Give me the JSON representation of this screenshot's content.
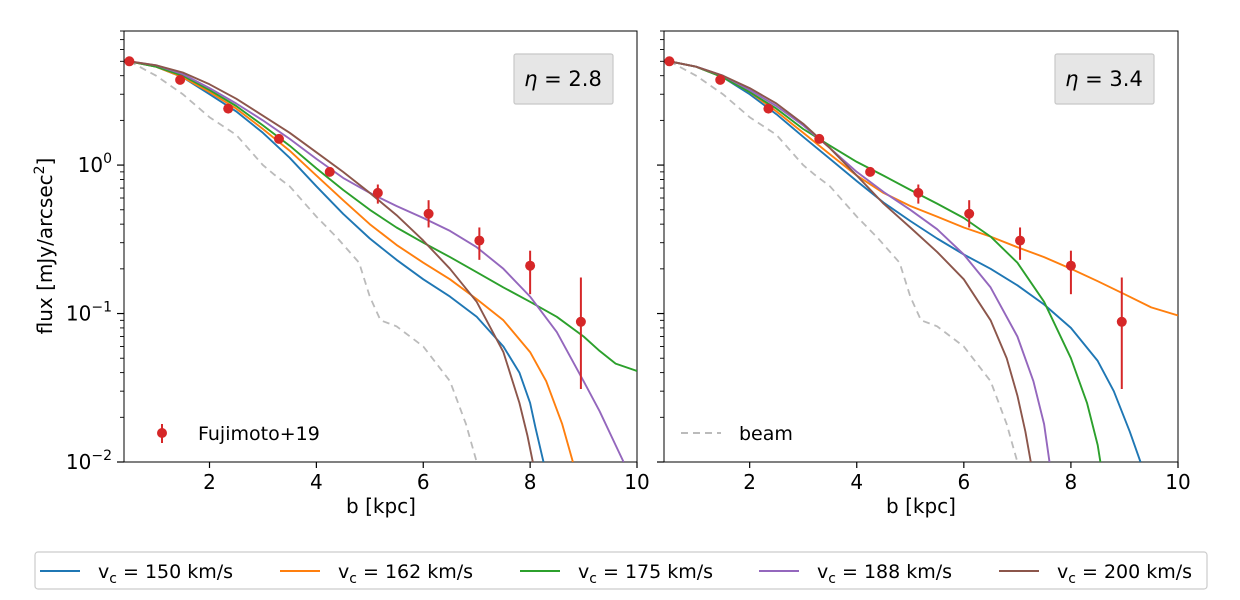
{
  "chart_data": {
    "type": "line",
    "ylabel": "flux [mJy/arcsec²]",
    "xlabel": "b [kpc]",
    "xlim": [
      0.4,
      10
    ],
    "ylim": [
      0.01,
      8
    ],
    "yscale": "log",
    "x_ticks": [
      "2",
      "4",
      "6",
      "8",
      "10"
    ],
    "y_ticks": [
      {
        "base": "10",
        "exp": "0"
      },
      {
        "base": "10",
        "exp": "−1"
      },
      {
        "base": "10",
        "exp": "−2"
      }
    ],
    "series_colors": {
      "vc150": "#1f77b4",
      "vc162": "#ff7f0e",
      "vc175": "#2ca02c",
      "vc188": "#9467bd",
      "vc200": "#8c564b",
      "beam": "#bbbbbb",
      "data": "#d62728"
    },
    "legend_bottom": [
      {
        "key": "vc150",
        "prefix": "v",
        "sub": "c",
        "suffix": " = 150 km/s"
      },
      {
        "key": "vc162",
        "prefix": "v",
        "sub": "c",
        "suffix": " = 162 km/s"
      },
      {
        "key": "vc175",
        "prefix": "v",
        "sub": "c",
        "suffix": " = 175 km/s"
      },
      {
        "key": "vc188",
        "prefix": "v",
        "sub": "c",
        "suffix": " = 188 km/s"
      },
      {
        "key": "vc200",
        "prefix": "v",
        "sub": "c",
        "suffix": " = 200 km/s"
      }
    ],
    "panels": [
      {
        "eta_symbol": "η",
        "eta_value": " = 2.8",
        "inner_legend": {
          "label": "Fujimoto+19",
          "kind": "errorbar"
        },
        "data_points": [
          {
            "x": 0.5,
            "y": 5.0,
            "err_lo": 0,
            "err_hi": 0
          },
          {
            "x": 1.45,
            "y": 3.75,
            "err_lo": 0,
            "err_hi": 0
          },
          {
            "x": 2.35,
            "y": 2.4,
            "err_lo": 0,
            "err_hi": 0
          },
          {
            "x": 3.3,
            "y": 1.5,
            "err_lo": 0,
            "err_hi": 0
          },
          {
            "x": 4.25,
            "y": 0.9,
            "err_lo": 0,
            "err_hi": 0
          },
          {
            "x": 5.15,
            "y": 0.65,
            "err_lo": 0.1,
            "err_hi": 0.09
          },
          {
            "x": 6.1,
            "y": 0.47,
            "err_lo": 0.09,
            "err_hi": 0.11
          },
          {
            "x": 7.05,
            "y": 0.31,
            "err_lo": 0.08,
            "err_hi": 0.07
          },
          {
            "x": 8.0,
            "y": 0.21,
            "err_lo": 0.075,
            "err_hi": 0.055
          },
          {
            "x": 8.95,
            "y": 0.088,
            "err_lo": 0.057,
            "err_hi": 0.087
          }
        ],
        "series": [
          {
            "key": "beam",
            "name": "beam",
            "x": [
              0.5,
              1,
              1.5,
              2,
              2.5,
              3,
              3.2,
              3.5,
              4,
              4.4,
              4.8,
              5.0,
              5.2,
              5.5,
              6,
              6.5,
              6.8,
              7.0
            ],
            "y": [
              5.0,
              4.0,
              3.0,
              2.1,
              1.6,
              1.0,
              0.87,
              0.72,
              0.45,
              0.32,
              0.22,
              0.13,
              0.09,
              0.082,
              0.06,
              0.035,
              0.018,
              0.01
            ]
          },
          {
            "key": "vc150",
            "name": "v_c = 150 km/s",
            "x": [
              0.5,
              1,
              1.5,
              2,
              2.5,
              3,
              3.5,
              4,
              4.5,
              5,
              5.5,
              6,
              6.5,
              7,
              7.5,
              7.8,
              8.0,
              8.1,
              8.25
            ],
            "y": [
              5.0,
              4.6,
              3.9,
              3.0,
              2.3,
              1.65,
              1.12,
              0.72,
              0.47,
              0.32,
              0.23,
              0.17,
              0.13,
              0.095,
              0.06,
              0.04,
              0.025,
              0.017,
              0.01
            ]
          },
          {
            "key": "vc162",
            "name": "v_c = 162 km/s",
            "x": [
              0.5,
              1,
              1.5,
              2,
              2.5,
              3,
              3.5,
              4,
              4.5,
              5,
              5.5,
              6,
              6.5,
              7,
              7.5,
              8,
              8.3,
              8.6,
              8.8
            ],
            "y": [
              5.0,
              4.6,
              3.9,
              3.1,
              2.4,
              1.75,
              1.25,
              0.85,
              0.58,
              0.4,
              0.29,
              0.22,
              0.17,
              0.125,
              0.09,
              0.055,
              0.035,
              0.018,
              0.01
            ]
          },
          {
            "key": "vc175",
            "name": "v_c = 175 km/s",
            "x": [
              0.5,
              1,
              1.5,
              2,
              2.5,
              3,
              3.5,
              4,
              4.5,
              5,
              5.5,
              6,
              6.5,
              7,
              7.5,
              8,
              8.5,
              9,
              9.3,
              9.6,
              10
            ],
            "y": [
              5.0,
              4.6,
              4.0,
              3.2,
              2.5,
              1.85,
              1.35,
              0.95,
              0.68,
              0.5,
              0.38,
              0.3,
              0.24,
              0.19,
              0.15,
              0.12,
              0.095,
              0.07,
              0.056,
              0.046,
              0.041
            ]
          },
          {
            "key": "vc188",
            "name": "v_c = 188 km/s",
            "x": [
              0.5,
              1,
              1.5,
              2,
              2.5,
              3,
              3.5,
              4,
              4.5,
              5,
              5.5,
              6,
              6.5,
              7,
              7.5,
              8,
              8.5,
              9,
              9.3,
              9.6,
              9.75
            ],
            "y": [
              5.0,
              4.7,
              4.1,
              3.3,
              2.6,
              2.0,
              1.5,
              1.1,
              0.82,
              0.65,
              0.53,
              0.44,
              0.36,
              0.28,
              0.2,
              0.13,
              0.075,
              0.035,
              0.022,
              0.013,
              0.01
            ]
          },
          {
            "key": "vc200",
            "name": "v_c = 200 km/s",
            "x": [
              0.5,
              1,
              1.5,
              2,
              2.5,
              3,
              3.5,
              4,
              4.5,
              5,
              5.5,
              6,
              6.5,
              7,
              7.5,
              7.8,
              7.95,
              8.05
            ],
            "y": [
              5.0,
              4.7,
              4.2,
              3.5,
              2.8,
              2.15,
              1.65,
              1.22,
              0.9,
              0.65,
              0.46,
              0.31,
              0.2,
              0.12,
              0.055,
              0.025,
              0.015,
              0.01
            ]
          }
        ]
      },
      {
        "eta_symbol": "η",
        "eta_value": " = 3.4",
        "inner_legend": {
          "label": "beam",
          "kind": "dashed"
        },
        "data_points": [
          {
            "x": 0.5,
            "y": 5.0,
            "err_lo": 0,
            "err_hi": 0
          },
          {
            "x": 1.45,
            "y": 3.75,
            "err_lo": 0,
            "err_hi": 0
          },
          {
            "x": 2.35,
            "y": 2.4,
            "err_lo": 0,
            "err_hi": 0
          },
          {
            "x": 3.3,
            "y": 1.5,
            "err_lo": 0,
            "err_hi": 0
          },
          {
            "x": 4.25,
            "y": 0.9,
            "err_lo": 0,
            "err_hi": 0
          },
          {
            "x": 5.15,
            "y": 0.65,
            "err_lo": 0.1,
            "err_hi": 0.09
          },
          {
            "x": 6.1,
            "y": 0.47,
            "err_lo": 0.09,
            "err_hi": 0.11
          },
          {
            "x": 7.05,
            "y": 0.31,
            "err_lo": 0.08,
            "err_hi": 0.07
          },
          {
            "x": 8.0,
            "y": 0.21,
            "err_lo": 0.075,
            "err_hi": 0.055
          },
          {
            "x": 8.95,
            "y": 0.088,
            "err_lo": 0.057,
            "err_hi": 0.087
          }
        ],
        "series": [
          {
            "key": "beam",
            "name": "beam",
            "x": [
              0.5,
              1,
              1.5,
              2,
              2.5,
              3,
              3.2,
              3.5,
              4,
              4.4,
              4.8,
              5.0,
              5.2,
              5.5,
              6,
              6.5,
              6.8,
              7.0
            ],
            "y": [
              5.0,
              4.0,
              3.0,
              2.1,
              1.6,
              1.0,
              0.87,
              0.72,
              0.45,
              0.32,
              0.22,
              0.13,
              0.09,
              0.082,
              0.06,
              0.035,
              0.018,
              0.01
            ]
          },
          {
            "key": "vc150",
            "name": "v_c = 150 km/s",
            "x": [
              0.5,
              1,
              1.5,
              2,
              2.5,
              3,
              3.5,
              4,
              4.5,
              5,
              5.5,
              6,
              6.5,
              7,
              7.5,
              8,
              8.5,
              8.8,
              9.1,
              9.3
            ],
            "y": [
              5.0,
              4.6,
              3.9,
              3.0,
              2.2,
              1.55,
              1.1,
              0.78,
              0.56,
              0.42,
              0.32,
              0.25,
              0.2,
              0.155,
              0.115,
              0.08,
              0.048,
              0.03,
              0.016,
              0.01
            ]
          },
          {
            "key": "vc162",
            "name": "v_c = 162 km/s",
            "x": [
              0.5,
              1,
              1.5,
              2,
              2.5,
              3,
              3.5,
              4,
              4.5,
              5,
              5.5,
              6,
              6.5,
              7,
              7.5,
              8,
              8.5,
              9,
              9.5,
              10
            ],
            "y": [
              5.0,
              4.6,
              3.9,
              3.1,
              2.3,
              1.65,
              1.18,
              0.85,
              0.65,
              0.53,
              0.45,
              0.38,
              0.33,
              0.28,
              0.24,
              0.2,
              0.165,
              0.135,
              0.11,
              0.097
            ]
          },
          {
            "key": "vc175",
            "name": "v_c = 175 km/s",
            "x": [
              0.5,
              1,
              1.5,
              2,
              2.5,
              3,
              3.5,
              4,
              4.5,
              5,
              5.5,
              6,
              6.5,
              7,
              7.5,
              8,
              8.3,
              8.5,
              8.55
            ],
            "y": [
              5.0,
              4.6,
              3.9,
              3.1,
              2.4,
              1.75,
              1.35,
              1.05,
              0.85,
              0.68,
              0.55,
              0.44,
              0.33,
              0.22,
              0.12,
              0.05,
              0.025,
              0.013,
              0.01
            ]
          },
          {
            "key": "vc188",
            "name": "v_c = 188 km/s",
            "x": [
              0.5,
              1,
              1.5,
              2,
              2.5,
              3,
              3.5,
              4,
              4.5,
              5,
              5.5,
              6,
              6.5,
              7,
              7.3,
              7.5,
              7.6
            ],
            "y": [
              5.0,
              4.6,
              4.0,
              3.2,
              2.5,
              1.85,
              1.3,
              0.9,
              0.66,
              0.5,
              0.37,
              0.25,
              0.15,
              0.07,
              0.035,
              0.018,
              0.01
            ]
          },
          {
            "key": "vc200",
            "name": "v_c = 200 km/s",
            "x": [
              0.5,
              1,
              1.5,
              2,
              2.5,
              3,
              3.5,
              4,
              4.5,
              5,
              5.5,
              6,
              6.5,
              6.8,
              7.0,
              7.15,
              7.25
            ],
            "y": [
              5.0,
              4.6,
              4.0,
              3.3,
              2.6,
              1.9,
              1.3,
              0.85,
              0.55,
              0.38,
              0.26,
              0.17,
              0.09,
              0.05,
              0.028,
              0.016,
              0.01
            ]
          }
        ]
      }
    ]
  }
}
